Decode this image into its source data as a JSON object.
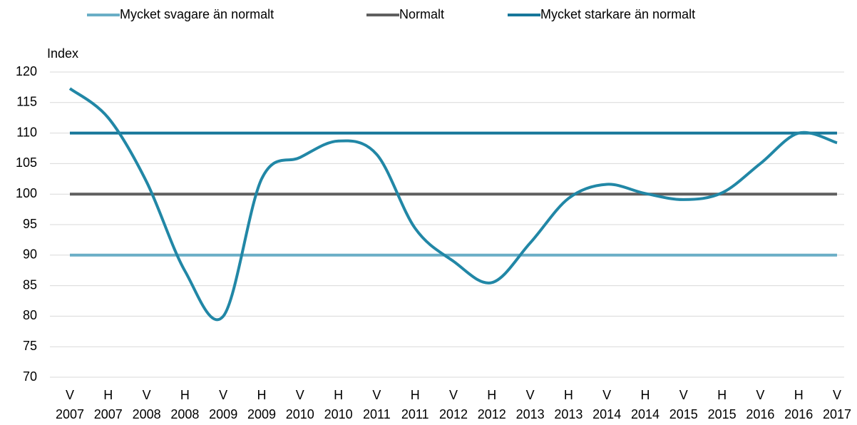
{
  "chart_data": {
    "type": "line",
    "y_label": "Index",
    "categories": [
      "V 2007",
      "H 2007",
      "V 2008",
      "H 2008",
      "V 2009",
      "H 2009",
      "V 2010",
      "H 2010",
      "V 2011",
      "H 2011",
      "V 2012",
      "H 2012",
      "V 2013",
      "H 2013",
      "V 2014",
      "H 2014",
      "V 2015",
      "H 2015",
      "V 2016",
      "H 2016",
      "V 2017"
    ],
    "series": [
      {
        "name": "Mycket svagare än normalt",
        "color": "#6aaec6",
        "values": [
          90,
          90,
          90,
          90,
          90,
          90,
          90,
          90,
          90,
          90,
          90,
          90,
          90,
          90,
          90,
          90,
          90,
          90,
          90,
          90,
          90
        ]
      },
      {
        "name": "Normalt",
        "color": "#5f5f5f",
        "values": [
          100,
          100,
          100,
          100,
          100,
          100,
          100,
          100,
          100,
          100,
          100,
          100,
          100,
          100,
          100,
          100,
          100,
          100,
          100,
          100,
          100
        ]
      },
      {
        "name": "Mycket starkare än normalt",
        "color": "#17779a",
        "values": [
          110,
          110,
          110,
          110,
          110,
          110,
          110,
          110,
          110,
          110,
          110,
          110,
          110,
          110,
          110,
          110,
          110,
          110,
          110,
          110,
          110
        ]
      },
      {
        "color": "#2187a6",
        "smooth": true,
        "values": [
          117.3,
          112.5,
          102,
          87.4,
          80,
          102.5,
          106,
          108.7,
          106.5,
          94.4,
          89,
          85.5,
          92,
          99.3,
          101.6,
          100.1,
          99.1,
          100.2,
          105,
          110,
          108.4
        ]
      }
    ],
    "ylim": [
      70,
      120
    ],
    "yticks": [
      70,
      75,
      80,
      85,
      90,
      95,
      100,
      105,
      110,
      115,
      120
    ],
    "grid": true,
    "legend": "top"
  }
}
